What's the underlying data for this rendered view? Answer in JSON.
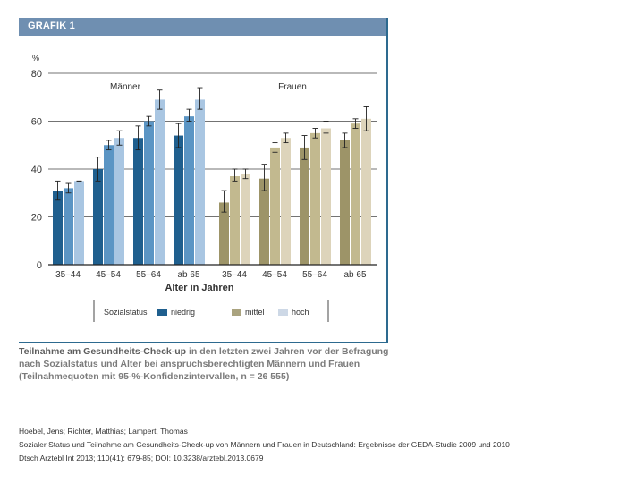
{
  "figure": {
    "title": "GRAFIK 1",
    "caption_lead": "Teilnahme am Gesundheits-Check-up",
    "caption_rest": " in den letzten zwei Jahren vor der Befragung nach Sozialstatus und Alter bei anspruchsberechtigten Männern und Frauen (Teilnahmequoten mit 95-%-Konfidenzintervallen, n = 26 555)"
  },
  "citation": {
    "authors": "Hoebel, Jens; Richter, Matthias; Lampert, Thomas",
    "article": "Sozialer Status und Teilnahme am Gesundheits-Check-up von Männern und Frauen in Deutschland: Ergebnisse der GEDA-Studie 2009 und 2010",
    "journal": "Dtsch Arztebl Int 2013; 110(41): 679-85; DOI: 10.3238/arztebl.2013.0679"
  },
  "chart_data": {
    "type": "bar",
    "unit_label": "%",
    "xlabel": "Alter in Jahren",
    "ylim": [
      0,
      80
    ],
    "yticks": [
      0,
      20,
      40,
      60,
      80
    ],
    "legend_title": "Sozialstatus",
    "legend_position": "bottom",
    "colors": {
      "Männer": [
        "#1f5f8e",
        "#5b95c4",
        "#a9c6e2"
      ],
      "Frauen": [
        "#9d9468",
        "#c2b98f",
        "#ddd4bb"
      ]
    },
    "legend_colors": [
      "#1f5f8e",
      "#aaa37f",
      "#cdd8e6"
    ],
    "groups": [
      {
        "name": "Männer",
        "categories": [
          "35–44",
          "45–54",
          "55–64",
          "ab 65"
        ],
        "series": [
          {
            "name": "niedrig",
            "values": [
              31,
              40,
              53,
              54
            ],
            "ci_low": [
              27,
              35,
              48,
              49
            ],
            "ci_high": [
              35,
              45,
              58,
              59
            ]
          },
          {
            "name": "mittel",
            "values": [
              32,
              50,
              60,
              62
            ],
            "ci_low": [
              30,
              48,
              58,
              60
            ],
            "ci_high": [
              34,
              52,
              62,
              65
            ]
          },
          {
            "name": "hoch",
            "values": [
              35,
              53,
              69,
              69
            ],
            "ci_low": [
              35,
              50,
              65,
              65
            ],
            "ci_high": [
              35,
              56,
              73,
              74
            ]
          }
        ]
      },
      {
        "name": "Frauen",
        "categories": [
          "35–44",
          "45–54",
          "55–64",
          "ab 65"
        ],
        "series": [
          {
            "name": "niedrig",
            "values": [
              26,
              36,
              49,
              52
            ],
            "ci_low": [
              22,
              31,
              44,
              49
            ],
            "ci_high": [
              31,
              42,
              54,
              55
            ]
          },
          {
            "name": "mittel",
            "values": [
              37,
              49,
              55,
              59
            ],
            "ci_low": [
              35,
              47,
              53,
              57
            ],
            "ci_high": [
              40,
              51,
              57,
              61
            ]
          },
          {
            "name": "hoch",
            "values": [
              38,
              53,
              57,
              61
            ],
            "ci_low": [
              36,
              51,
              55,
              56
            ],
            "ci_high": [
              40,
              55,
              60,
              66
            ]
          }
        ]
      }
    ]
  }
}
